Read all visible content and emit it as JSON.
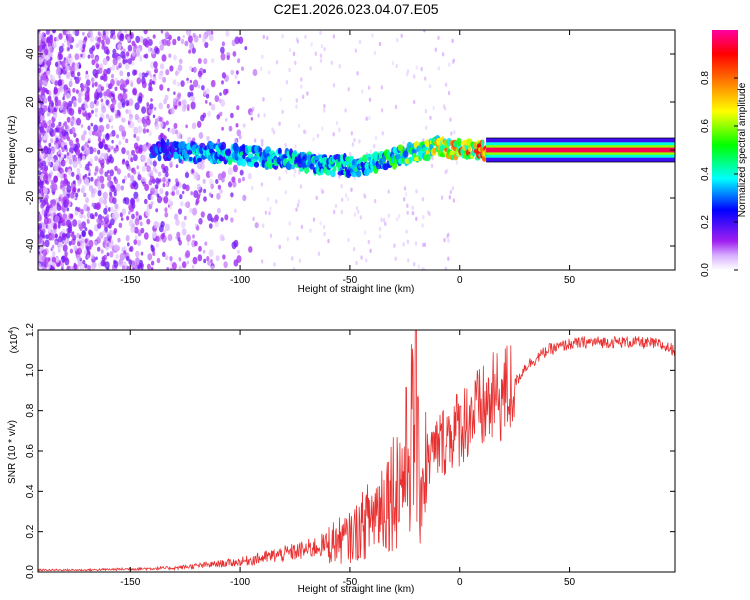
{
  "title": "C2E1.2026.023.04.07.E05",
  "chart_data": [
    {
      "type": "heatmap",
      "xlabel": "Height of straight line (km)",
      "ylabel": "Frequency (Hz)",
      "xlim": [
        -192,
        98
      ],
      "ylim": [
        -50,
        50
      ],
      "xticks": [
        -150,
        -100,
        -50,
        0,
        50
      ],
      "yticks": [
        -40,
        -20,
        0,
        20,
        40
      ],
      "colorbar": {
        "label": "Normalized spectral amplitude",
        "ticks": [
          "0.0",
          "0.2",
          "0.4",
          "0.6",
          "0.8"
        ],
        "range": [
          0,
          1
        ],
        "stops": [
          "#ffffff",
          "#a020f0",
          "#0000ff",
          "#00ffff",
          "#00ff00",
          "#ffff00",
          "#ff8000",
          "#ff0000",
          "#ff00a0"
        ]
      },
      "ridge": {
        "x": [
          -135,
          -120,
          -100,
          -80,
          -60,
          -45,
          -35,
          -25,
          -15,
          -10,
          0,
          10,
          20,
          50,
          98
        ],
        "y": [
          0,
          -1,
          -2,
          -4,
          -6,
          -7,
          -4,
          -2,
          0,
          1,
          0,
          0,
          0,
          0,
          0
        ],
        "amplitude": [
          0.35,
          0.4,
          0.45,
          0.45,
          0.45,
          0.45,
          0.5,
          0.6,
          0.7,
          0.75,
          0.85,
          0.9,
          0.95,
          1.0,
          1.0
        ]
      }
    },
    {
      "type": "line",
      "xlabel": "Height of straight line (km)",
      "ylabel": "SNR (10 * v/v)",
      "scale_label": "(x10",
      "scale_exp": "4",
      "scale_close": ")",
      "xlim": [
        -192,
        98
      ],
      "ylim": [
        0,
        1.2
      ],
      "xticks": [
        -150,
        -100,
        -50,
        0,
        50
      ],
      "yticks": [
        "0.0",
        "0.2",
        "0.4",
        "0.6",
        "0.8",
        "1.0",
        "1.2"
      ],
      "series": [
        {
          "name": "SNR",
          "color": "#e83030",
          "x": [
            -192,
            -170,
            -150,
            -130,
            -120,
            -110,
            -100,
            -90,
            -80,
            -70,
            -60,
            -50,
            -45,
            -40,
            -35,
            -30,
            -25,
            -22,
            -20,
            -18,
            -15,
            -10,
            -5,
            0,
            5,
            10,
            15,
            20,
            25,
            30,
            40,
            50,
            60,
            70,
            80,
            90,
            98
          ],
          "y": [
            0.01,
            0.01,
            0.015,
            0.02,
            0.03,
            0.04,
            0.05,
            0.07,
            0.09,
            0.11,
            0.14,
            0.17,
            0.22,
            0.28,
            0.35,
            0.42,
            0.5,
            0.7,
            0.55,
            0.45,
            0.55,
            0.62,
            0.68,
            0.72,
            0.78,
            0.8,
            0.85,
            0.88,
            0.93,
            1.02,
            1.1,
            1.13,
            1.14,
            1.14,
            1.14,
            1.13,
            1.1
          ]
        }
      ]
    }
  ]
}
